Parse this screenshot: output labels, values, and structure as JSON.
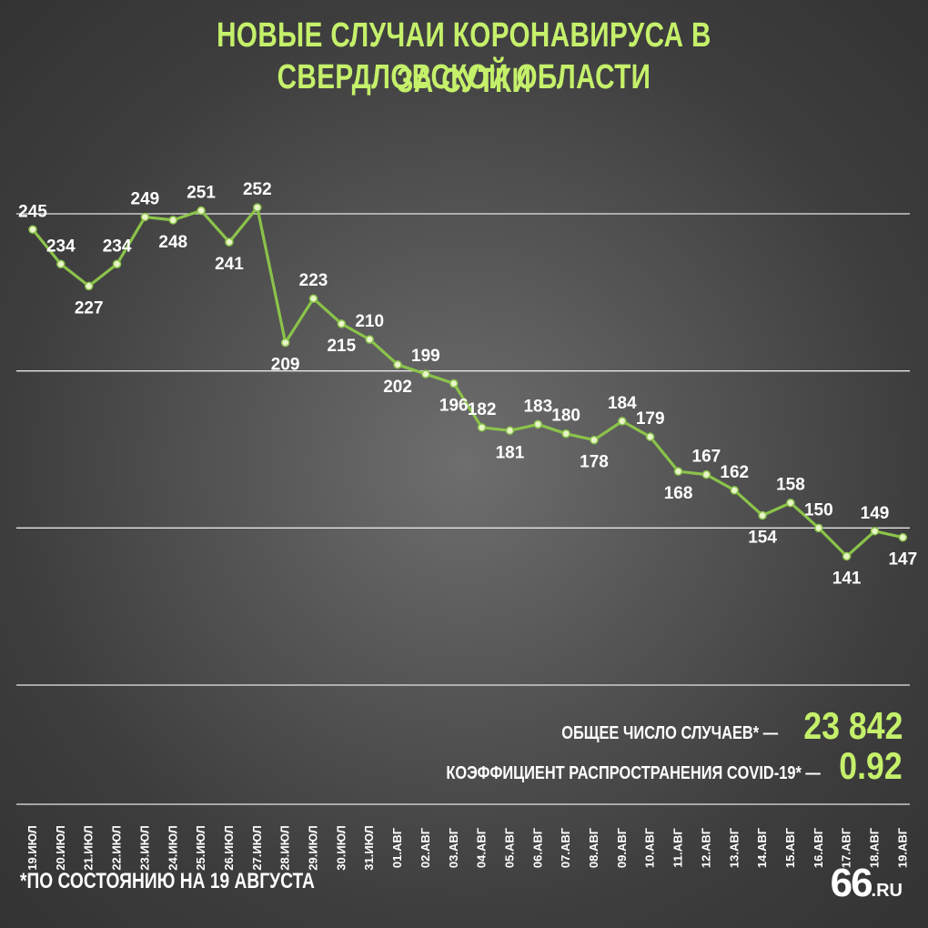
{
  "title_line1": "НОВЫЕ СЛУЧАИ КОРОНАВИРУСА В СВЕРДЛОВСКОЙ ОБЛАСТИ",
  "title_line2": "ЗА СУТКИ",
  "stats": {
    "total_label": "ОБЩЕЕ ЧИСЛО СЛУЧАЕВ* —",
    "total_value": "23 842",
    "r_label": "КОЭФФИЦИЕНТ РАСПРОСТРАНЕНИЯ COVID-19* —",
    "r_value": "0.92"
  },
  "footnote": "*ПО СОСТОЯНИЮ НА 19 АВГУСТА",
  "logo": {
    "big": "66",
    "small": ".RU"
  },
  "colors": {
    "accent": "#c5f06a",
    "line": "#8bc34a",
    "text": "#ffffff",
    "grid": "#e6e6e6"
  },
  "chart_data": {
    "type": "line",
    "categories": [
      "19.ИЮЛ",
      "20.ИЮЛ",
      "21.ИЮЛ",
      "22.ИЮЛ",
      "23.ИЮЛ",
      "24.ИЮЛ",
      "25.ИЮЛ",
      "26.ИЮЛ",
      "27.ИЮЛ",
      "28.ИЮЛ",
      "29.ИЮЛ",
      "30.ИЮЛ",
      "31.ИЮЛ",
      "01.АВГ",
      "02.АВГ",
      "03.АВГ",
      "04.АВГ",
      "05.АВГ",
      "06.АВГ",
      "07.АВГ",
      "08.АВГ",
      "09.АВГ",
      "10.АВГ",
      "11.АВГ",
      "12.АВГ",
      "13.АВГ",
      "14.АВГ",
      "15.АВГ",
      "16.АВГ",
      "17.АВГ",
      "18.АВГ",
      "19.АВГ"
    ],
    "values": [
      245,
      234,
      227,
      234,
      249,
      248,
      251,
      241,
      252,
      209,
      223,
      215,
      210,
      202,
      199,
      196,
      182,
      181,
      183,
      180,
      178,
      184,
      179,
      168,
      167,
      162,
      154,
      158,
      150,
      141,
      149,
      147
    ],
    "value_labels": [
      "245",
      "234",
      "227",
      "234",
      "249",
      "248",
      "251",
      "241",
      "252",
      "209",
      "223",
      "215",
      "210",
      "202",
      "199",
      "196",
      "182",
      "181",
      "183",
      "180",
      "178",
      "184",
      "179",
      "168",
      "167",
      "162",
      "154",
      "158",
      "150",
      "141",
      "149",
      "147"
    ],
    "ylim": [
      80,
      280
    ],
    "gridlines": [
      250,
      200,
      150,
      100
    ],
    "grid": true,
    "data_labels": true
  }
}
